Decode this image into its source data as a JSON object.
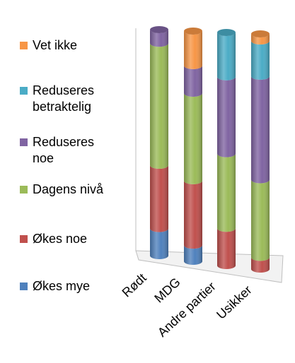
{
  "chart_data": {
    "type": "bar",
    "stacked": true,
    "percent_stacked": true,
    "three_d": true,
    "bar_shape": "cylinder",
    "grid": false,
    "legend_position": "left",
    "title": "",
    "xlabel": "",
    "ylabel": "",
    "ylim": [
      0,
      100
    ],
    "categories": [
      "Rødt",
      "MDG",
      "Andre partier",
      "Usikker"
    ],
    "series": [
      {
        "name": "Økes mye",
        "color": "#4F81BD",
        "values": [
          12,
          7,
          0,
          0
        ]
      },
      {
        "name": "Økes noe",
        "color": "#C0504D",
        "values": [
          28,
          28,
          16,
          5
        ]
      },
      {
        "name": "Dagens nivå",
        "color": "#9BBB59",
        "values": [
          54,
          38,
          32,
          33
        ]
      },
      {
        "name": "Reduseres noe",
        "color": "#8064A2",
        "values": [
          6,
          12,
          33,
          44
        ]
      },
      {
        "name": "Reduseres betraktelig",
        "color": "#4BACC6",
        "values": [
          0,
          0,
          19,
          15
        ]
      },
      {
        "name": "Vet ikke",
        "color": "#F79646",
        "values": [
          0,
          15,
          0,
          3
        ]
      }
    ]
  }
}
